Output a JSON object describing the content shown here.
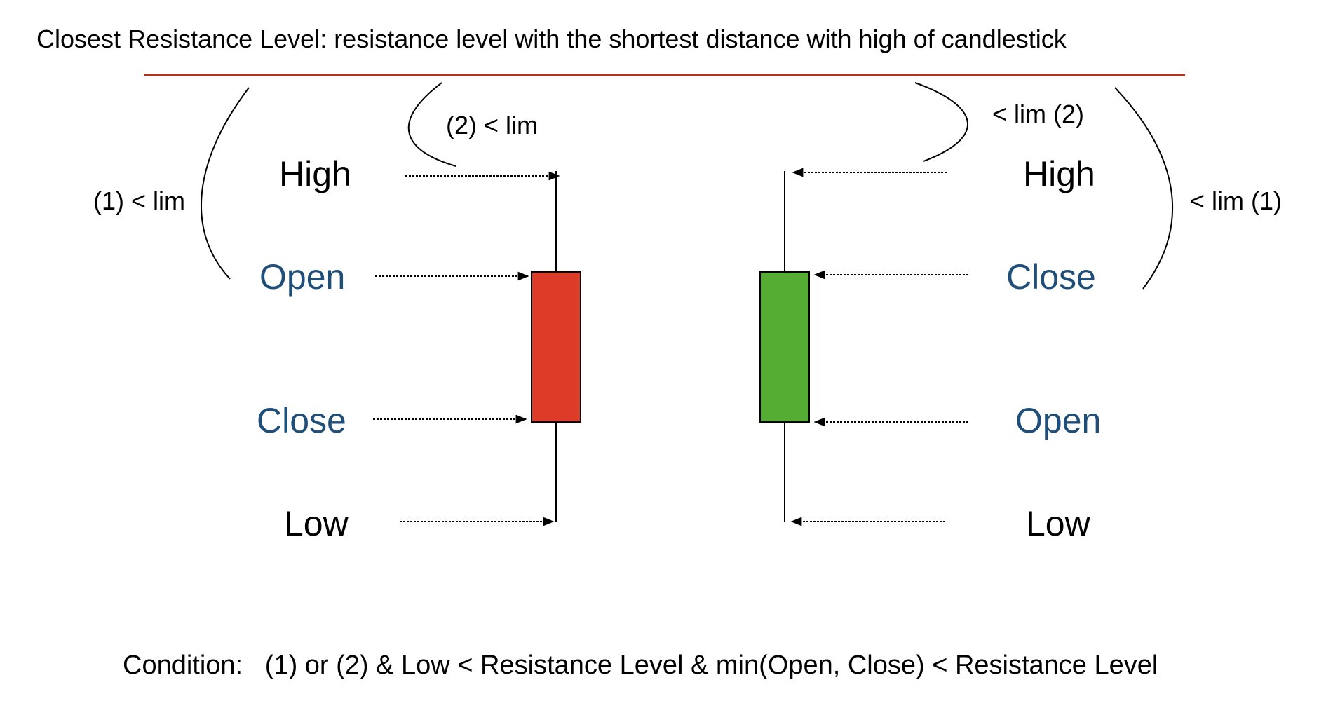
{
  "title": "Closest Resistance Level: resistance level with the shortest distance with high of candlestick",
  "colors": {
    "resistance_line": "#b5321e",
    "bearish_body": "#dc3c28",
    "bullish_body": "#55ad33",
    "label_blue": "#1f4e79",
    "label_black": "#000000"
  },
  "left_candle": {
    "type": "bearish",
    "labels": {
      "high": "High",
      "open": "Open",
      "close": "Close",
      "low": "Low"
    },
    "lim_far": "(1) < lim",
    "lim_near": "(2) < lim"
  },
  "right_candle": {
    "type": "bullish",
    "labels": {
      "high": "High",
      "close": "Close",
      "open": "Open",
      "low": "Low"
    },
    "lim_near": "< lim (2)",
    "lim_far": "< lim  (1)"
  },
  "condition": "Condition:   (1) or (2) & Low < Resistance Level & min(Open, Close) < Resistance Level"
}
